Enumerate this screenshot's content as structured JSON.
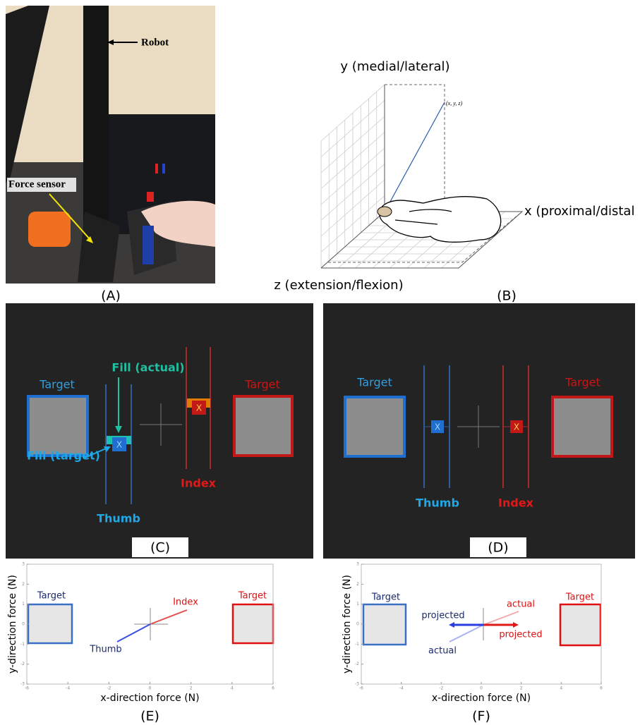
{
  "panel_a": {
    "label": "(A)",
    "robot": "Robot",
    "force_sensor": "Force sensor"
  },
  "panel_b": {
    "label": "(B)",
    "y_axis": "y (medial/lateral)",
    "x_axis": "x (proximal/distal",
    "z_axis": "z (extension/flexion)",
    "point": "(x, y, z)"
  },
  "panel_c": {
    "label": "(C)",
    "left_target": "Target",
    "right_target": "Target",
    "fill_actual": "Fill (actual)",
    "fill_target": "Fill (target)",
    "thumb": "Thumb",
    "index": "Index",
    "thumb_marker": "X",
    "index_marker": "X"
  },
  "panel_d": {
    "label": "(D)",
    "left_target": "Target",
    "right_target": "Target",
    "thumb": "Thumb",
    "index": "Index",
    "thumb_marker": "X",
    "index_marker": "X"
  },
  "panel_e": {
    "label": "(E)",
    "xlabel": "x-direction force (N)",
    "ylabel": "y-direction force (N)",
    "xticks": [
      -6,
      -4,
      -2,
      0,
      2,
      4,
      6
    ],
    "yticks": [
      -3,
      -2,
      -1,
      0,
      1,
      2,
      3
    ],
    "xlim": [
      -6,
      6
    ],
    "ylim": [
      -3,
      3
    ],
    "left_target": "Target",
    "right_target": "Target",
    "thumb": "Thumb",
    "index": "Index"
  },
  "panel_f": {
    "label": "(F)",
    "xlabel": "x-direction force (N)",
    "ylabel": "y-direction force (N)",
    "xticks": [
      -6,
      -4,
      -2,
      0,
      2,
      4,
      6
    ],
    "yticks": [
      -3,
      -2,
      -1,
      0,
      1,
      2,
      3
    ],
    "xlim": [
      -6,
      6
    ],
    "ylim": [
      -3,
      3
    ],
    "left_target": "Target",
    "right_target": "Target",
    "thumb_projected": "projected",
    "thumb_actual": "actual",
    "index_actual": "actual",
    "index_projected": "projected"
  }
}
